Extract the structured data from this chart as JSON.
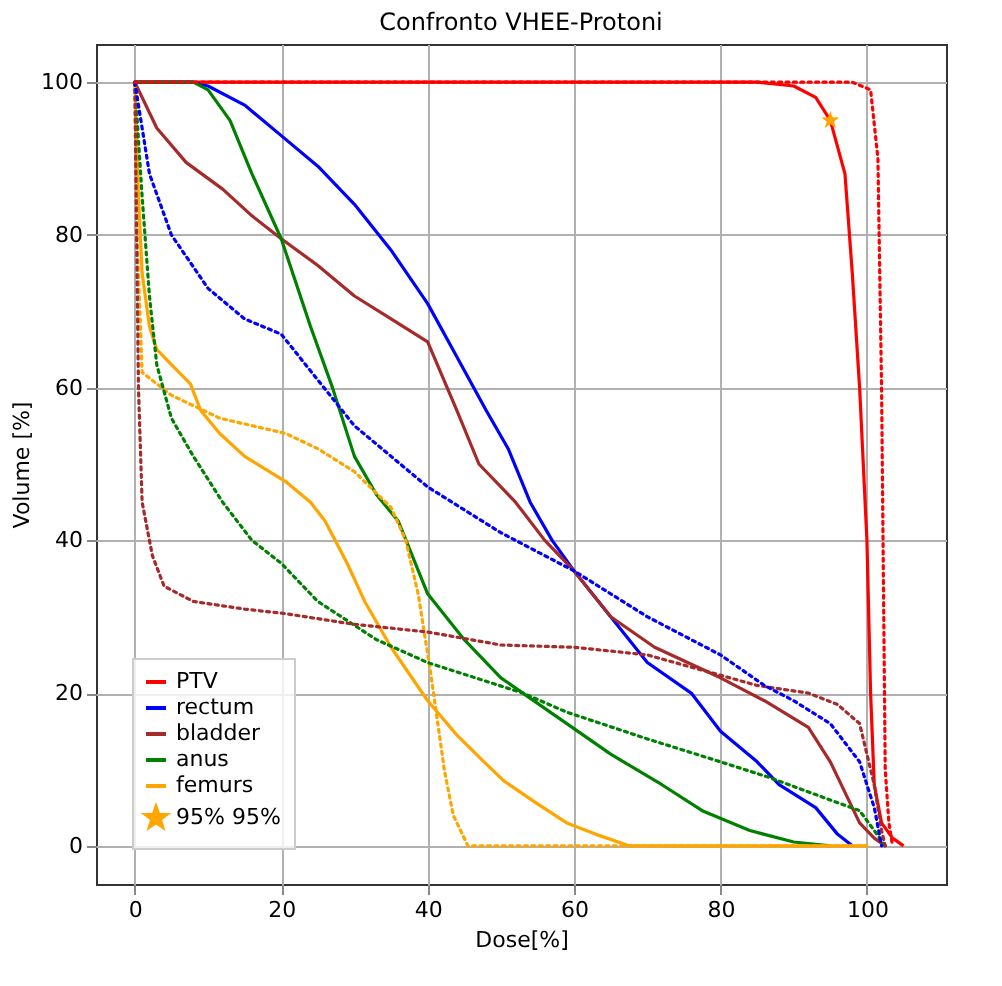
{
  "chart_data": {
    "type": "line",
    "title": "Confronto VHEE-Protoni",
    "xlabel": "Dose[%]",
    "ylabel": "Volume [%]",
    "xlim": [
      -5.3,
      110.8
    ],
    "ylim": [
      -5,
      105
    ],
    "xticks": [
      0,
      20,
      40,
      60,
      80,
      100
    ],
    "yticks": [
      0,
      20,
      40,
      60,
      80,
      100
    ],
    "grid": true,
    "legend": "bottom left",
    "series": [
      {
        "name": "PTV",
        "color": "#ff0000",
        "line_style": "solid",
        "x": [
          0,
          85,
          90,
          93,
          95,
          97,
          98,
          99,
          100,
          100.5,
          101,
          102,
          103.5,
          105
        ],
        "values": [
          100,
          100,
          99.5,
          98,
          95,
          88,
          75,
          60,
          40,
          20,
          8,
          3,
          1,
          0
        ]
      },
      {
        "name": "rectum",
        "color": "#0000ff",
        "line_style": "solid",
        "x": [
          0,
          8,
          10,
          15,
          20,
          25,
          30,
          35,
          40,
          44,
          48,
          51,
          54,
          57,
          60,
          65,
          70,
          76,
          80,
          85,
          88,
          93,
          96,
          98
        ],
        "values": [
          100,
          100,
          99.5,
          97,
          93,
          89,
          84,
          78,
          71,
          64,
          57,
          52,
          45,
          40,
          36,
          30,
          24,
          20,
          15,
          11,
          8,
          5,
          1.5,
          0
        ]
      },
      {
        "name": "bladder",
        "color": "#a52a2a",
        "line_style": "solid",
        "x": [
          0,
          3,
          7,
          12,
          16,
          20,
          25,
          30,
          35,
          40,
          44,
          47,
          52,
          56,
          60,
          65,
          71,
          80,
          86,
          92,
          95,
          97,
          99,
          101,
          102.5
        ],
        "values": [
          100,
          94,
          89.5,
          86,
          82.5,
          79.5,
          76,
          72,
          69,
          66,
          57,
          50,
          45,
          40,
          36,
          30,
          26,
          22,
          19,
          15.5,
          11,
          7,
          3,
          1,
          0
        ]
      },
      {
        "name": "anus",
        "color": "#008000",
        "line_style": "solid",
        "x": [
          0,
          8,
          10,
          13,
          16,
          20,
          24,
          27,
          30,
          33,
          36,
          40,
          45,
          50,
          53,
          59,
          65,
          72,
          77.5,
          84,
          90,
          95
        ],
        "values": [
          100,
          100,
          99,
          95,
          88,
          79.5,
          68,
          60,
          51,
          46,
          42.5,
          33,
          27,
          22,
          20,
          16,
          12,
          8,
          4.6,
          2,
          0.5,
          0
        ]
      },
      {
        "name": "femurs",
        "color": "#ffa500",
        "line_style": "solid",
        "x": [
          0,
          0.5,
          1,
          2,
          3,
          5,
          7.6,
          9,
          11.6,
          15,
          20.6,
          24,
          26,
          29,
          31.4,
          35,
          40,
          44,
          47.7,
          50.4,
          55,
          59,
          63,
          67.5,
          100
        ],
        "values": [
          100,
          85,
          75,
          68,
          65,
          63,
          60.5,
          57,
          54,
          51,
          47.7,
          45,
          42.5,
          37,
          32,
          26,
          19,
          14.5,
          11,
          8.5,
          5.5,
          3,
          1.5,
          0,
          0
        ]
      },
      {
        "color": "#ff0000",
        "line_style": "dotted",
        "x": [
          0,
          98,
          100.5,
          101.5,
          102,
          102.3,
          102.5,
          103,
          103.5
        ],
        "values": [
          100,
          100,
          99,
          90,
          60,
          30,
          10,
          3,
          0
        ]
      },
      {
        "color": "#0000ff",
        "line_style": "dotted",
        "x": [
          0,
          2,
          5,
          10,
          15,
          20,
          25,
          30,
          35,
          40,
          50,
          60,
          70,
          80,
          86,
          90,
          95,
          99,
          101,
          102
        ],
        "values": [
          100,
          88,
          80,
          73,
          69,
          67,
          61,
          55,
          51,
          47,
          41,
          36,
          30,
          25,
          21,
          19,
          16,
          11,
          5,
          0
        ]
      },
      {
        "color": "#a52a2a",
        "line_style": "dotted",
        "x": [
          0,
          0.5,
          1,
          2.4,
          4,
          8,
          15,
          20.6,
          30,
          40,
          50,
          60,
          70,
          85,
          92,
          96,
          99,
          101,
          102,
          102.5
        ],
        "values": [
          100,
          60,
          45,
          38,
          34,
          32,
          31,
          30.4,
          29,
          28,
          26.3,
          26,
          25,
          21,
          20,
          18.5,
          16,
          8,
          2,
          0
        ]
      },
      {
        "color": "#008000",
        "line_style": "dotted",
        "x": [
          0,
          1,
          2,
          3,
          5,
          8,
          12,
          16,
          20,
          25,
          33,
          40,
          53,
          59,
          70,
          80,
          86.5,
          95,
          99,
          101,
          102.5
        ],
        "values": [
          100,
          85,
          72,
          63,
          56,
          51,
          45,
          40,
          37,
          32,
          27,
          24,
          20,
          17.5,
          14,
          11,
          9,
          6,
          4.6,
          2,
          0
        ]
      },
      {
        "color": "#ffa500",
        "line_style": "dotted",
        "x": [
          0,
          0.3,
          1,
          5,
          11.6,
          20.6,
          25,
          30,
          35,
          37,
          38.7,
          40.4,
          42.3,
          43.5,
          45.5,
          100
        ],
        "values": [
          100,
          80,
          62,
          59,
          56,
          54,
          52,
          49,
          44.3,
          40,
          33,
          22.7,
          9.8,
          4,
          0,
          0
        ]
      },
      {
        "name": "95% 95%",
        "type": "scatter",
        "marker": "star",
        "color": "#ffa500",
        "x": [
          95
        ],
        "values": [
          95
        ]
      }
    ]
  }
}
